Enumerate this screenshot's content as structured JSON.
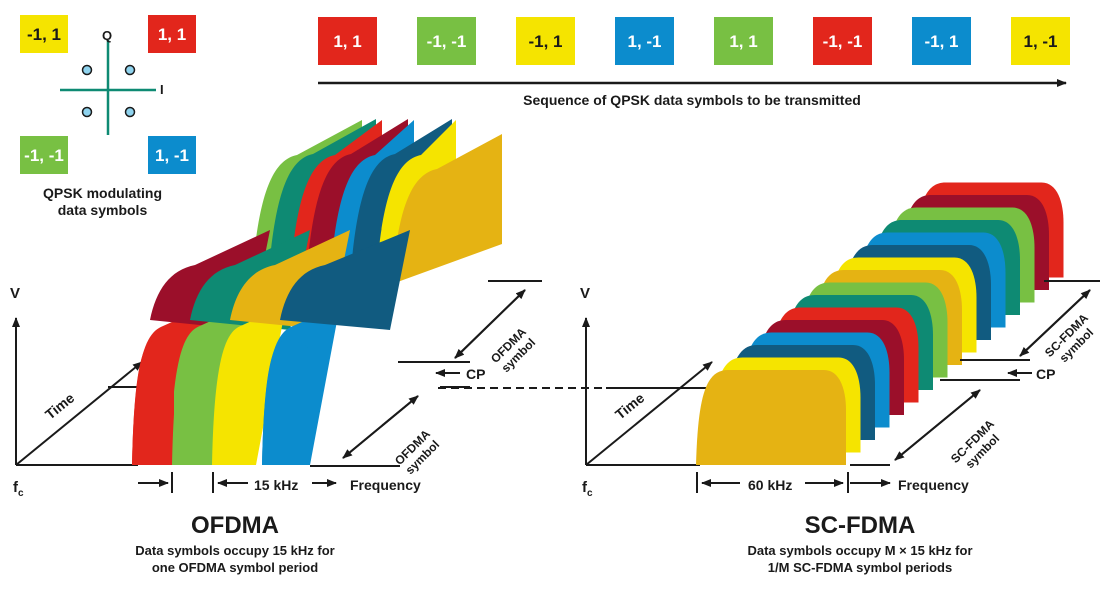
{
  "constellation": {
    "q_axis": "Q",
    "i_axis": "I",
    "caption_line1": "QPSK modulating",
    "caption_line2": "data symbols",
    "corners": [
      {
        "text": "-1, 1",
        "color": "#f5e400"
      },
      {
        "text": "1, 1",
        "color": "#e2261c"
      },
      {
        "text": "-1, -1",
        "color": "#78c043"
      },
      {
        "text": "1, -1",
        "color": "#0c8ccd"
      }
    ]
  },
  "sequence": {
    "symbols": [
      {
        "text": "1, 1",
        "color": "#e2261c"
      },
      {
        "text": "-1, -1",
        "color": "#78c043"
      },
      {
        "text": "-1, 1",
        "color": "#f5e400"
      },
      {
        "text": "1, -1",
        "color": "#0c8ccd"
      },
      {
        "text": "1, 1",
        "color": "#78c043"
      },
      {
        "text": "-1, -1",
        "color": "#e2261c"
      },
      {
        "text": "-1, 1",
        "color": "#0c8ccd"
      },
      {
        "text": "1, -1",
        "color": "#f5e400"
      }
    ],
    "caption": "Sequence of QPSK data symbols to be transmitted"
  },
  "ofdma": {
    "axis_v": "V",
    "axis_time": "Time",
    "axis_fc": "f",
    "axis_fc_sub": "c",
    "axis_frequency": "Frequency",
    "cp_label": "CP",
    "symbol_label_line1": "OFDMA",
    "symbol_label_line2": "symbol",
    "spacing_label": "15 kHz",
    "title": "OFDMA",
    "subtitle_line1": "Data symbols occupy 15 kHz for",
    "subtitle_line2": "one OFDMA symbol period"
  },
  "scfdma": {
    "axis_v": "V",
    "axis_time": "Time",
    "axis_fc": "f",
    "axis_fc_sub": "c",
    "axis_frequency": "Frequency",
    "cp_label": "CP",
    "symbol_label_line1": "SC-FDMA",
    "symbol_label_line2": "symbol",
    "bandwidth_label": "60 kHz",
    "title": "SC-FDMA",
    "subtitle_line1": "Data symbols occupy M × 15 kHz for",
    "subtitle_line2": "1/M SC-FDMA symbol periods"
  },
  "palette": {
    "red": "#e2261c",
    "dark_red": "#9b0f2a",
    "green": "#78c043",
    "teal": "#0e8a73",
    "yellow": "#f5e400",
    "gold": "#e5b313",
    "blue": "#0c8ccd",
    "navy": "#115b80"
  }
}
